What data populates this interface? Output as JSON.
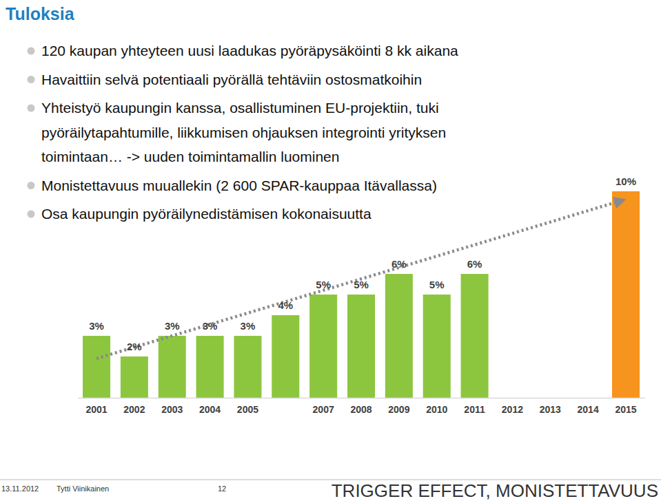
{
  "slide": {
    "title": "Tuloksia",
    "bullets": [
      {
        "lines": [
          "120 kaupan yhteyteen uusi laadukas pyöräpysäköinti 8 kk aikana"
        ]
      },
      {
        "lines": [
          "Havaittiin selvä potentiaali pyörällä tehtäviin ostosmatkoihin"
        ]
      },
      {
        "lines": [
          "Yhteistyö kaupungin kanssa, osallistuminen EU-projektiin, tuki",
          "pyöräilytapahtumille, liikkumisen ohjauksen integrointi yrityksen",
          "toimintaan… -> uuden toimintamallin luominen"
        ]
      },
      {
        "lines": [
          "Monistettavuus muuallekin (2 600 SPAR-kauppaa Itävallassa)"
        ]
      },
      {
        "lines": [
          "Osa kaupungin pyöräilynedistämisen kokonaisuutta"
        ]
      }
    ],
    "footer": {
      "date": "13.11.2012",
      "author": "Tytti Viinikainen",
      "page": "12",
      "caption": "TRIGGER EFFECT, MONISTETTAVUUS"
    }
  },
  "chart_data": {
    "type": "bar",
    "categories": [
      "2001",
      "2002",
      "2003",
      "2004",
      "2005",
      null,
      "2007",
      "2008",
      "2009",
      "2010",
      "2011",
      "2012",
      "2013",
      "2014",
      "2015"
    ],
    "values": [
      3,
      2,
      3,
      3,
      3,
      4,
      5,
      5,
      6,
      5,
      6,
      null,
      null,
      null,
      10
    ],
    "value_labels": [
      "3%",
      "2%",
      "3%",
      "3%",
      "3%",
      "4%",
      "5%",
      "5%",
      "6%",
      "5%",
      "6%",
      null,
      null,
      null,
      "10%"
    ],
    "colors": [
      "#8cc63f",
      "#8cc63f",
      "#8cc63f",
      "#8cc63f",
      "#8cc63f",
      "#8cc63f",
      "#8cc63f",
      "#8cc63f",
      "#8cc63f",
      "#8cc63f",
      "#8cc63f",
      "#8cc63f",
      "#8cc63f",
      "#8cc63f",
      "#f7941d"
    ],
    "ylim": [
      0,
      10
    ],
    "data_labels": true,
    "tick_labels": "x",
    "grid": false
  }
}
